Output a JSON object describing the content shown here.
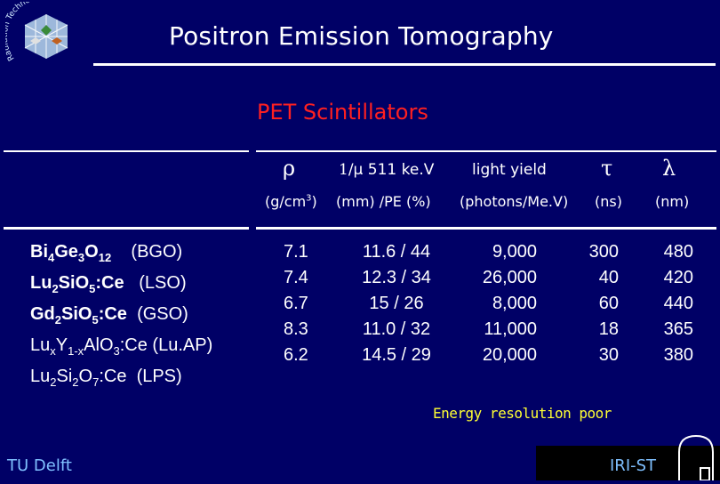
{
  "logo": {
    "text": "Radiation Technology"
  },
  "title": "Positron Emission Tomography",
  "subtitle": "PET Scintillators",
  "headers": {
    "rho": "ρ",
    "mu_prefix": "1",
    "mu": "/μ 511 ke.V",
    "light_yield": "light yield",
    "tau": "τ",
    "lambda": "λ"
  },
  "units": {
    "density": "(g/cm",
    "density_exp": "3",
    "density_close": ")",
    "attenuation": "(mm) /PE (%)",
    "light": "(photons/Me.V)",
    "time": "(ns)",
    "wavelength": "(nm)"
  },
  "materials": [
    {
      "formula": "Bi4Ge3O12",
      "name": "(BGO)",
      "density": "7.1",
      "atten": "11.6 / 44",
      "light": "9,000",
      "tau": "300",
      "lambda": "480"
    },
    {
      "formula": "Lu2SiO5:Ce",
      "name": "(LSO)",
      "density": "7.4",
      "atten": "12.3 / 34",
      "light": "26,000",
      "tau": "40",
      "lambda": "420"
    },
    {
      "formula": "Gd2SiO5:Ce",
      "name": "(GSO)",
      "density": "6.7",
      "atten": "15 / 26",
      "light": "8,000",
      "tau": "60",
      "lambda": "440"
    },
    {
      "formula": "LuxY1-xAlO3:Ce",
      "name": "(Lu.AP)",
      "density": "8.3",
      "atten": "11.0 / 32",
      "light": "11,000",
      "tau": "18",
      "lambda": "365"
    },
    {
      "formula": "Lu2Si2O7:Ce",
      "name": "(LPS)",
      "density": "6.2",
      "atten": "14.5 / 29",
      "light": "20,000",
      "tau": "30",
      "lambda": "380"
    }
  ],
  "note": "Energy resolution poor",
  "footer": {
    "left": "TU Delft",
    "right": "IRI-ST"
  },
  "colors": {
    "background": "#000066",
    "subtitle": "#ff2020",
    "note": "#ffff33",
    "footer": "#7fc0ff"
  }
}
